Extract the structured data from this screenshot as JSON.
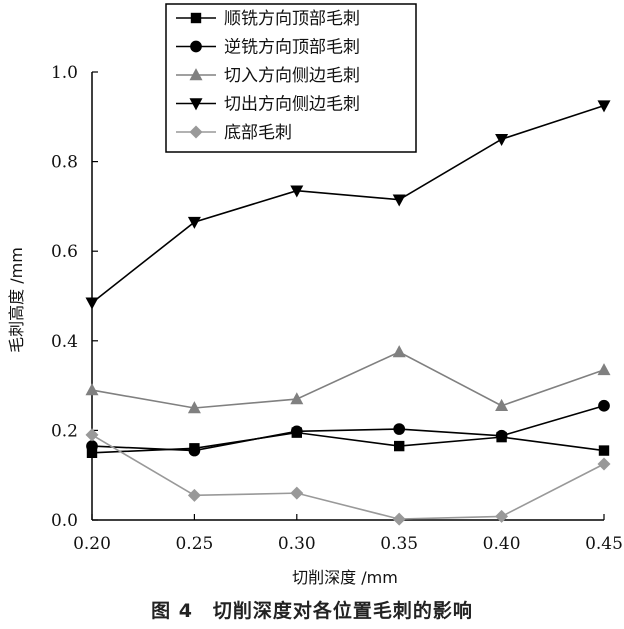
{
  "caption": "图 4　切削深度对各位置毛刺的影响",
  "chart_data": {
    "type": "line",
    "xlabel": "切削深度 /mm",
    "ylabel": "毛刺高度 /mm",
    "x": [
      0.2,
      0.25,
      0.3,
      0.35,
      0.4,
      0.45
    ],
    "x_tick_labels": [
      "0.20",
      "0.25",
      "0.30",
      "0.35",
      "0.40",
      "0.45"
    ],
    "xlim": [
      0.2,
      0.45
    ],
    "ylim": [
      0.0,
      1.0
    ],
    "y_ticks": [
      0.0,
      0.2,
      0.4,
      0.6,
      0.8,
      1.0
    ],
    "y_tick_labels": [
      "0.0",
      "0.2",
      "0.4",
      "0.6",
      "0.8",
      "1.0"
    ],
    "grid": false,
    "legend_position": "top-left",
    "series": [
      {
        "name": "顺铣方向顶部毛刺",
        "marker": "square",
        "color": "#000000",
        "values": [
          0.15,
          0.16,
          0.195,
          0.165,
          0.185,
          0.155
        ]
      },
      {
        "name": "逆铣方向顶部毛刺",
        "marker": "circle",
        "color": "#000000",
        "values": [
          0.165,
          0.155,
          0.198,
          0.203,
          0.188,
          0.255
        ]
      },
      {
        "name": "切入方向侧边毛刺",
        "marker": "triangle-up",
        "color": "#808080",
        "values": [
          0.29,
          0.25,
          0.27,
          0.375,
          0.255,
          0.335
        ]
      },
      {
        "name": "切出方向侧边毛刺",
        "marker": "triangle-down",
        "color": "#000000",
        "values": [
          0.485,
          0.665,
          0.735,
          0.715,
          0.85,
          0.925
        ]
      },
      {
        "name": "底部毛刺",
        "marker": "diamond",
        "color": "#999999",
        "values": [
          0.19,
          0.055,
          0.06,
          0.002,
          0.008,
          0.125
        ]
      }
    ]
  }
}
